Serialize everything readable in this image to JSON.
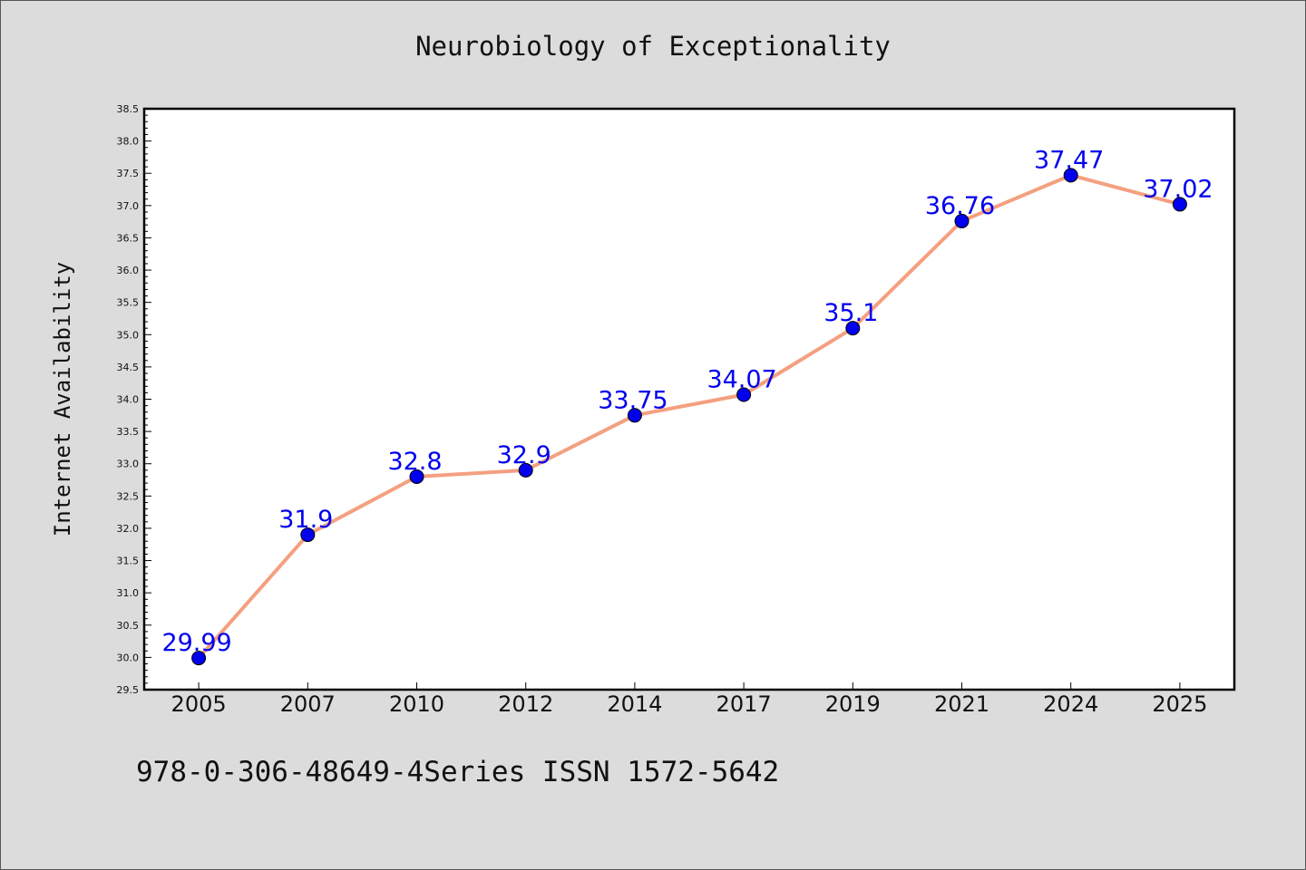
{
  "page": {
    "title": "Neurobiology of Exceptionality",
    "footer": "978-0-306-48649-4Series ISSN 1572-5642"
  },
  "colors": {
    "background": "#dcdcdc",
    "plot_background": "#ffffff",
    "line": "#f4a080",
    "marker": "#0000ee",
    "label": "#0000ee"
  },
  "chart_data": {
    "type": "line",
    "title": "Neurobiology of Exceptionality",
    "xlabel": "",
    "ylabel": "Internet Availability",
    "categories": [
      "2005",
      "2007",
      "2010",
      "2012",
      "2014",
      "2017",
      "2019",
      "2021",
      "2024",
      "2025"
    ],
    "series": [
      {
        "values": [
          29.99,
          31.9,
          32.8,
          32.9,
          33.75,
          34.07,
          35.1,
          36.76,
          37.47,
          37.02
        ],
        "labels": [
          "29.99",
          "31.9",
          "32.8",
          "32.9",
          "33.75",
          "34.07",
          "35.1",
          "36.76",
          "37.47",
          "37.02"
        ]
      }
    ],
    "ylim": [
      29.5,
      38.5
    ],
    "yticks": [
      "29.5",
      "30.0",
      "30.5",
      "31.0",
      "31.5",
      "32.0",
      "32.5",
      "33.0",
      "33.5",
      "34.0",
      "34.5",
      "35.0",
      "35.5",
      "36.0",
      "36.5",
      "37.0",
      "37.5",
      "38.0",
      "38.5"
    ],
    "grid": false,
    "legend": "none"
  }
}
